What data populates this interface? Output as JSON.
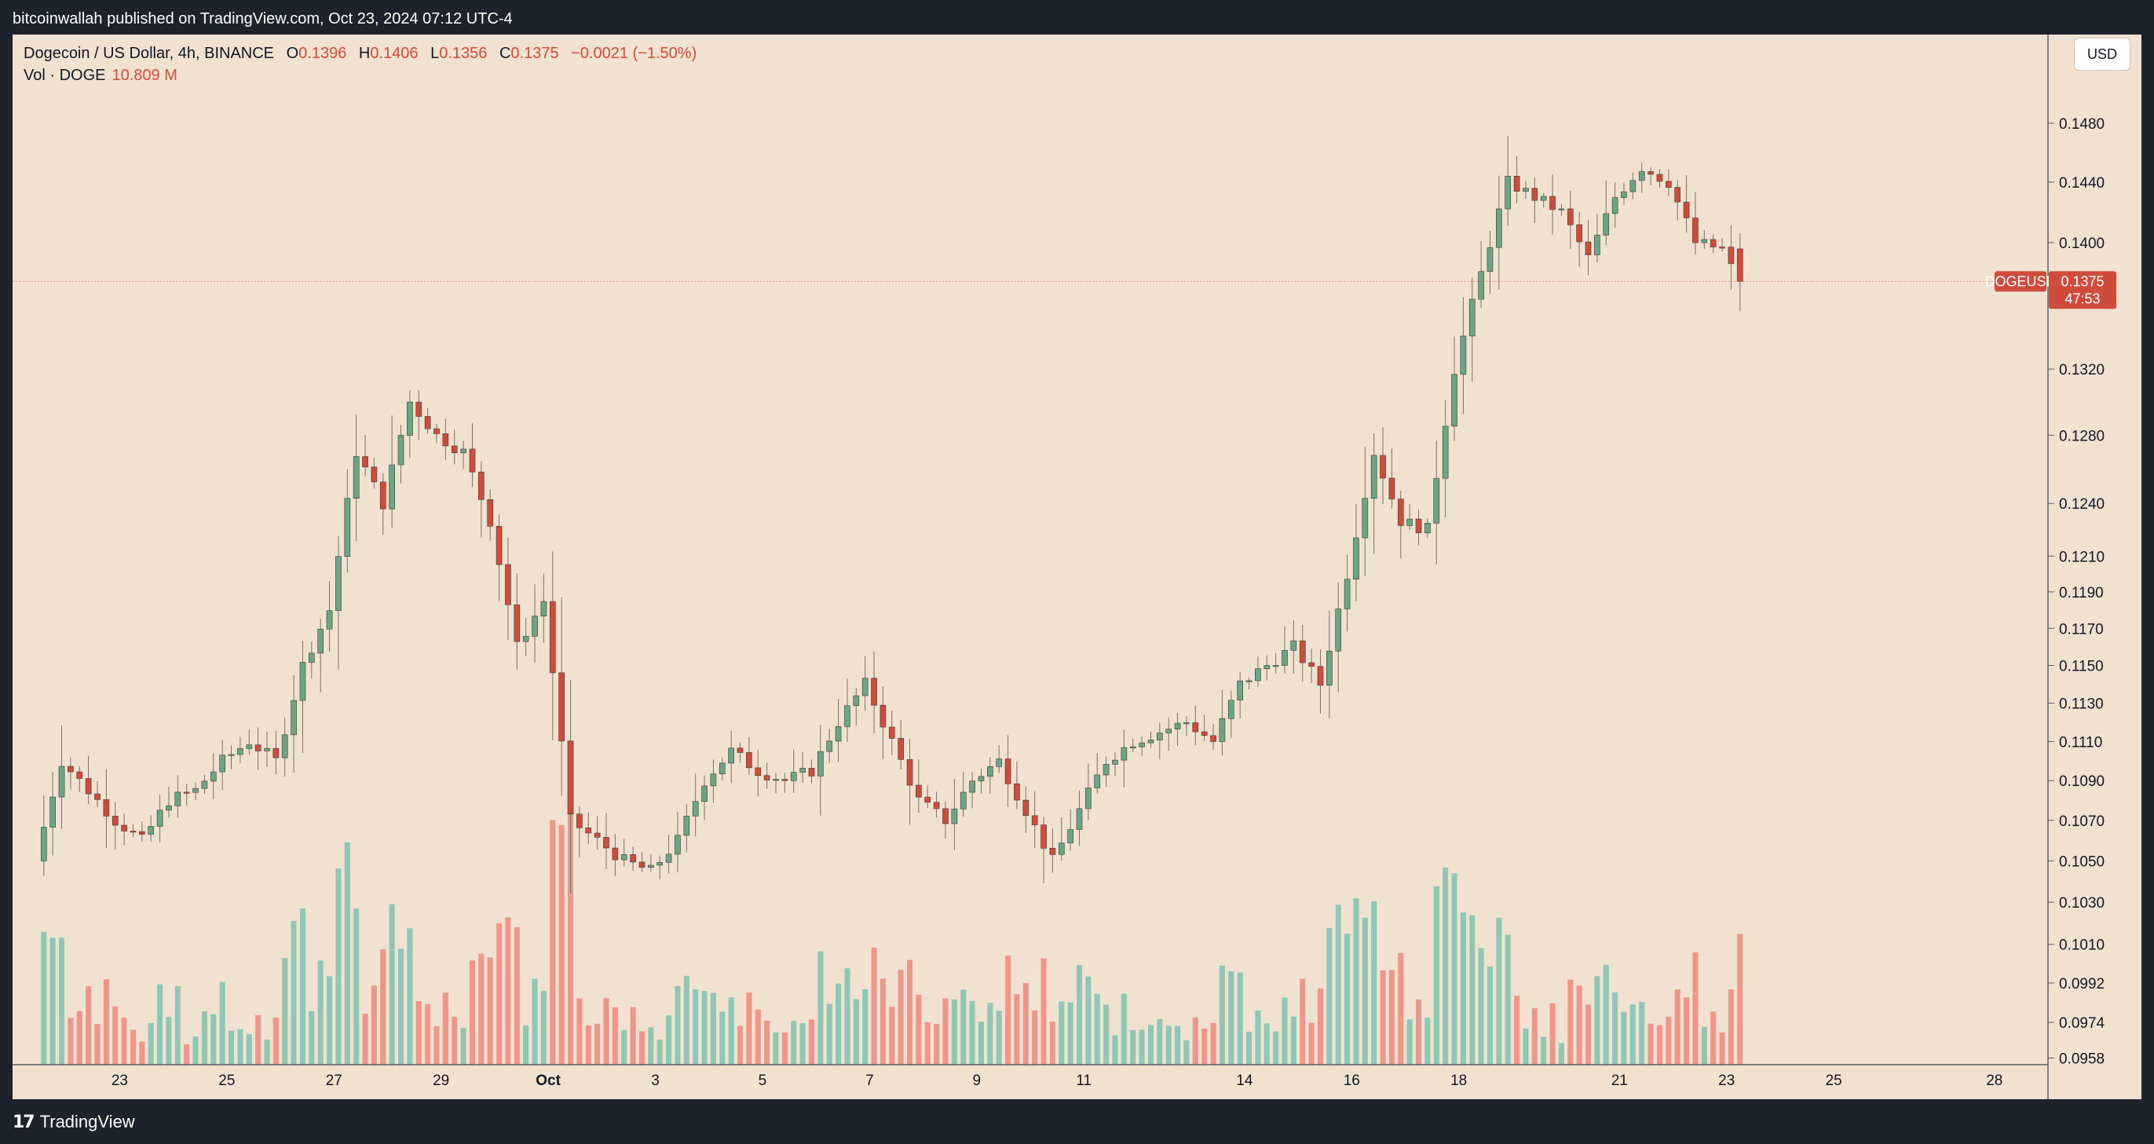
{
  "header": {
    "published_text": "bitcoinwallah published on TradingView.com, Oct 23, 2024 07:12 UTC-4"
  },
  "legend": {
    "symbol": "Dogecoin / US Dollar, 4h, BINANCE",
    "o_label": "O",
    "o_value": "0.1396",
    "h_label": "H",
    "h_value": "0.1406",
    "l_label": "L",
    "l_value": "0.1356",
    "c_label": "C",
    "c_value": "0.1375",
    "change": "−0.0021 (−1.50%)",
    "vol_label": "Vol · DOGE",
    "vol_value": "10.809 M"
  },
  "currency_button": "USD",
  "footer": {
    "brand": "TradingView",
    "logo_icon": "tradingview-logo-icon"
  },
  "colors": {
    "up": "#6aa586",
    "down": "#cf4b3b",
    "vol_up": "#8ec8b5",
    "vol_down": "#f0958a",
    "background": "#f1e1d1",
    "frame": "#1e222d"
  },
  "chart_data": {
    "type": "candlestick",
    "symbol": "DOGEUSD",
    "interval": "4h",
    "exchange": "BINANCE",
    "price_axis": {
      "scale": "log",
      "range": [
        0.0955,
        0.152
      ],
      "ticks": [
        "0.1480",
        "0.1440",
        "0.1400",
        "0.1320",
        "0.1280",
        "0.1240",
        "0.1210",
        "0.1190",
        "0.1170",
        "0.1150",
        "0.1130",
        "0.1110",
        "0.1090",
        "0.1070",
        "0.1050",
        "0.1030",
        "0.1010",
        "0.0992",
        "0.0974",
        "0.0958"
      ]
    },
    "time_axis": {
      "start": "2024-09-21",
      "end": "2024-10-29",
      "ticks": [
        {
          "date": "2024-09-23",
          "label": "23"
        },
        {
          "date": "2024-09-25",
          "label": "25"
        },
        {
          "date": "2024-09-27",
          "label": "27"
        },
        {
          "date": "2024-09-29",
          "label": "29"
        },
        {
          "date": "2024-10-01",
          "label": "Oct"
        },
        {
          "date": "2024-10-03",
          "label": "3"
        },
        {
          "date": "2024-10-05",
          "label": "5"
        },
        {
          "date": "2024-10-07",
          "label": "7"
        },
        {
          "date": "2024-10-09",
          "label": "9"
        },
        {
          "date": "2024-10-11",
          "label": "11"
        },
        {
          "date": "2024-10-14",
          "label": "14"
        },
        {
          "date": "2024-10-16",
          "label": "16"
        },
        {
          "date": "2024-10-18",
          "label": "18"
        },
        {
          "date": "2024-10-21",
          "label": "21"
        },
        {
          "date": "2024-10-23",
          "label": "23"
        },
        {
          "date": "2024-10-25",
          "label": "25"
        },
        {
          "date": "2024-10-28",
          "label": "28"
        }
      ]
    },
    "current_price": {
      "label": "DOGEUSD",
      "value": "0.1375",
      "countdown": "47:53"
    },
    "price_path": [
      [
        "2024-09-21T12:00",
        0.105
      ],
      [
        "2024-09-22T00:00",
        0.11
      ],
      [
        "2024-09-22T12:00",
        0.1085
      ],
      [
        "2024-09-23T00:00",
        0.107
      ],
      [
        "2024-09-23T12:00",
        0.106
      ],
      [
        "2024-09-24T00:00",
        0.108
      ],
      [
        "2024-09-24T12:00",
        0.1085
      ],
      [
        "2024-09-25T00:00",
        0.11
      ],
      [
        "2024-09-25T12:00",
        0.111
      ],
      [
        "2024-09-26T00:00",
        0.11
      ],
      [
        "2024-09-26T12:00",
        0.115
      ],
      [
        "2024-09-27T00:00",
        0.118
      ],
      [
        "2024-09-27T12:00",
        0.127
      ],
      [
        "2024-09-28T00:00",
        0.124
      ],
      [
        "2024-09-28T12:00",
        0.13
      ],
      [
        "2024-09-29T00:00",
        0.128
      ],
      [
        "2024-09-29T12:00",
        0.127
      ],
      [
        "2024-09-30T00:00",
        0.123
      ],
      [
        "2024-09-30T12:00",
        0.116
      ],
      [
        "2024-10-01T00:00",
        0.1185
      ],
      [
        "2024-10-01T12:00",
        0.107
      ],
      [
        "2024-10-02T00:00",
        0.106
      ],
      [
        "2024-10-02T12:00",
        0.105
      ],
      [
        "2024-10-03T00:00",
        0.1045
      ],
      [
        "2024-10-03T12:00",
        0.106
      ],
      [
        "2024-10-04T00:00",
        0.109
      ],
      [
        "2024-10-04T12:00",
        0.1105
      ],
      [
        "2024-10-05T00:00",
        0.1095
      ],
      [
        "2024-10-05T12:00",
        0.109
      ],
      [
        "2024-10-06T00:00",
        0.1095
      ],
      [
        "2024-10-06T12:00",
        0.112
      ],
      [
        "2024-10-07T00:00",
        0.114
      ],
      [
        "2024-10-07T12:00",
        0.111
      ],
      [
        "2024-10-08T00:00",
        0.108
      ],
      [
        "2024-10-08T12:00",
        0.107
      ],
      [
        "2024-10-09T00:00",
        0.109
      ],
      [
        "2024-10-09T12:00",
        0.11
      ],
      [
        "2024-10-10T00:00",
        0.1075
      ],
      [
        "2024-10-10T12:00",
        0.105
      ],
      [
        "2024-10-11T00:00",
        0.1075
      ],
      [
        "2024-10-11T12:00",
        0.11
      ],
      [
        "2024-10-12T00:00",
        0.111
      ],
      [
        "2024-10-12T12:00",
        0.1115
      ],
      [
        "2024-10-13T00:00",
        0.112
      ],
      [
        "2024-10-13T12:00",
        0.111
      ],
      [
        "2024-10-14T00:00",
        0.114
      ],
      [
        "2024-10-14T12:00",
        0.115
      ],
      [
        "2024-10-15T00:00",
        0.116
      ],
      [
        "2024-10-15T12:00",
        0.114
      ],
      [
        "2024-10-16T00:00",
        0.12
      ],
      [
        "2024-10-16T12:00",
        0.127
      ],
      [
        "2024-10-17T00:00",
        0.123
      ],
      [
        "2024-10-17T12:00",
        0.1225
      ],
      [
        "2024-10-18T00:00",
        0.132
      ],
      [
        "2024-10-18T12:00",
        0.138
      ],
      [
        "2024-10-19T00:00",
        0.144
      ],
      [
        "2024-10-19T12:00",
        0.143
      ],
      [
        "2024-10-20T00:00",
        0.142
      ],
      [
        "2024-10-20T12:00",
        0.139
      ],
      [
        "2024-10-21T00:00",
        0.143
      ],
      [
        "2024-10-21T12:00",
        0.145
      ],
      [
        "2024-10-22T00:00",
        0.144
      ],
      [
        "2024-10-22T12:00",
        0.14
      ],
      [
        "2024-10-23T00:00",
        0.1396
      ],
      [
        "2024-10-23T07:00",
        0.1375
      ]
    ],
    "last_candle": {
      "time": "2024-10-23T04:00",
      "open": 0.1396,
      "high": 0.1406,
      "low": 0.1356,
      "close": 0.1375
    }
  }
}
